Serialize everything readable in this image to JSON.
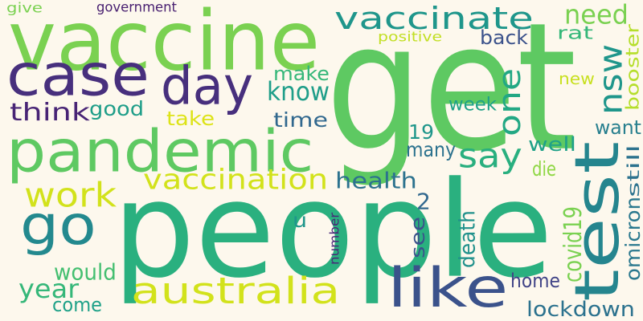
{
  "words": [
    {
      "id": "get",
      "text": "get",
      "color": "#5ec962",
      "orientation": "horizontal"
    },
    {
      "id": "people",
      "text": "people",
      "color": "#2ab07f",
      "orientation": "horizontal"
    },
    {
      "id": "vaccine",
      "text": "vaccine",
      "color": "#7ad151",
      "orientation": "horizontal"
    },
    {
      "id": "test",
      "text": "test",
      "color": "#25858e",
      "orientation": "vertical"
    },
    {
      "id": "case",
      "text": "case",
      "color": "#472f7d",
      "orientation": "horizontal"
    },
    {
      "id": "pandemic",
      "text": "pandemic",
      "color": "#5ec962",
      "orientation": "horizontal"
    },
    {
      "id": "day",
      "text": "day",
      "color": "#472f7d",
      "orientation": "horizontal"
    },
    {
      "id": "like",
      "text": "like",
      "color": "#3b528b",
      "orientation": "horizontal"
    },
    {
      "id": "vaccinate",
      "text": "vaccinate",
      "color": "#1f968b",
      "orientation": "horizontal"
    },
    {
      "id": "go",
      "text": "go",
      "color": "#23898e",
      "orientation": "horizontal"
    },
    {
      "id": "australia",
      "text": "australia",
      "color": "#d2e21b",
      "orientation": "horizontal"
    },
    {
      "id": "work",
      "text": "work",
      "color": "#d2e21b",
      "orientation": "horizontal"
    },
    {
      "id": "nsw",
      "text": "nsw",
      "color": "#1f968b",
      "orientation": "vertical"
    },
    {
      "id": "say",
      "text": "say",
      "color": "#29af7f",
      "orientation": "horizontal"
    },
    {
      "id": "one",
      "text": "one",
      "color": "#22a884",
      "orientation": "vertical"
    },
    {
      "id": "vaccination",
      "text": "vaccination",
      "color": "#d2e21b",
      "orientation": "horizontal"
    },
    {
      "id": "think",
      "text": "think",
      "color": "#482475",
      "orientation": "horizontal"
    },
    {
      "id": "know",
      "text": "know",
      "color": "#1f9e89",
      "orientation": "horizontal"
    },
    {
      "id": "need",
      "text": "need",
      "color": "#7ad151",
      "orientation": "horizontal"
    },
    {
      "id": "lockdown",
      "text": "lockdown",
      "color": "#2c728e",
      "orientation": "horizontal"
    },
    {
      "id": "health",
      "text": "health",
      "color": "#2c728e",
      "orientation": "horizontal"
    },
    {
      "id": "year",
      "text": "year",
      "color": "#35b779",
      "orientation": "horizontal"
    },
    {
      "id": "good",
      "text": "good",
      "color": "#1f9e89",
      "orientation": "horizontal"
    },
    {
      "id": "make",
      "text": "make",
      "color": "#35b779",
      "orientation": "horizontal"
    },
    {
      "id": "time",
      "text": "time",
      "color": "#31688e",
      "orientation": "horizontal"
    },
    {
      "id": "take",
      "text": "take",
      "color": "#dde318",
      "orientation": "horizontal"
    },
    {
      "id": "would",
      "text": "would",
      "color": "#44bf70",
      "orientation": "horizontal"
    },
    {
      "id": "come",
      "text": "come",
      "color": "#1fa188",
      "orientation": "horizontal"
    },
    {
      "id": "home",
      "text": "home",
      "color": "#414487",
      "orientation": "horizontal"
    },
    {
      "id": "covid19",
      "text": "covid19",
      "color": "#7ad151",
      "orientation": "vertical"
    },
    {
      "id": "booster",
      "text": "booster",
      "color": "#b5de2b",
      "orientation": "vertical"
    },
    {
      "id": "omicron",
      "text": "omicron",
      "color": "#2a788e",
      "orientation": "vertical"
    },
    {
      "id": "still",
      "text": "still",
      "color": "#2c728e",
      "orientation": "vertical"
    },
    {
      "id": "death",
      "text": "death",
      "color": "#21918c",
      "orientation": "vertical"
    },
    {
      "id": "week",
      "text": "week",
      "color": "#1fa188",
      "orientation": "horizontal"
    },
    {
      "id": "want",
      "text": "want",
      "color": "#277f8e",
      "orientation": "horizontal"
    },
    {
      "id": "well",
      "text": "well",
      "color": "#1fa188",
      "orientation": "horizontal"
    },
    {
      "id": "many",
      "text": "many",
      "color": "#2c728e",
      "orientation": "horizontal"
    },
    {
      "id": "die",
      "text": "die",
      "color": "#8fd744",
      "orientation": "horizontal"
    },
    {
      "id": "back",
      "text": "back",
      "color": "#3b528b",
      "orientation": "horizontal"
    },
    {
      "id": "rat",
      "text": "rat",
      "color": "#35b779",
      "orientation": "horizontal"
    },
    {
      "id": "new",
      "text": "new",
      "color": "#c8e020",
      "orientation": "horizontal"
    },
    {
      "id": "see",
      "text": "see",
      "color": "#3b528b",
      "orientation": "vertical"
    },
    {
      "id": "2",
      "text": "2",
      "color": "#31688e",
      "orientation": "horizontal"
    },
    {
      "id": "19",
      "text": "19",
      "color": "#1f968b",
      "orientation": "horizontal"
    },
    {
      "id": "u",
      "text": "u",
      "color": "#1f968b",
      "orientation": "horizontal"
    },
    {
      "id": "number",
      "text": "number",
      "color": "#482878",
      "orientation": "vertical"
    },
    {
      "id": "give",
      "text": "give",
      "color": "#7ad151",
      "orientation": "horizontal"
    },
    {
      "id": "government",
      "text": "government",
      "color": "#481f70",
      "orientation": "horizontal"
    },
    {
      "id": "positive",
      "text": "positive",
      "color": "#c2df23",
      "orientation": "horizontal"
    }
  ]
}
